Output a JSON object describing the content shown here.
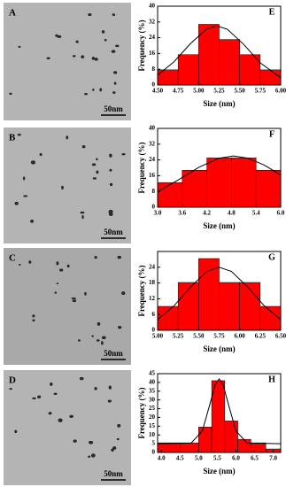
{
  "images": [
    {
      "label": "A",
      "scale_bar": "50nm"
    },
    {
      "label": "B",
      "scale_bar": "50nm"
    },
    {
      "label": "C",
      "scale_bar": "50nm"
    },
    {
      "label": "D",
      "scale_bar": "50nm"
    }
  ],
  "chart_data": [
    {
      "type": "histogram",
      "label": "E",
      "xlabel": "Size (nm)",
      "ylabel": "Frequency (%)",
      "color": "#ff0000",
      "bins": [
        4.5,
        4.75,
        5.0,
        5.25,
        5.5,
        5.75,
        6.0
      ],
      "values": [
        7.7,
        15.4,
        30.8,
        23.1,
        15.4,
        7.7
      ],
      "xlim": [
        4.5,
        6.0
      ],
      "ylim": [
        0,
        40
      ],
      "xticks": [
        {
          "value": 4.5,
          "label": "4.50"
        },
        4.75,
        {
          "value": 5.0,
          "label": "5.00"
        },
        5.25,
        {
          "value": 5.5,
          "label": "5.50"
        },
        5.75,
        {
          "value": 6.0,
          "label": "6.00"
        }
      ],
      "yticks": [
        0,
        8,
        16,
        24,
        32,
        40
      ],
      "fit": {
        "color": "#000000",
        "x": [
          4.5,
          4.7,
          4.9,
          5.1,
          5.22,
          5.35,
          5.55,
          5.75,
          6.0
        ],
        "values": [
          5.0,
          11.8,
          21.0,
          28.5,
          30,
          28.3,
          20.6,
          11.3,
          3.7
        ]
      }
    },
    {
      "type": "histogram",
      "label": "F",
      "xlabel": "Size (nm)",
      "ylabel": "Frequency (%)",
      "color": "#ff0000",
      "bins": [
        3.0,
        3.6,
        4.2,
        4.8,
        5.4,
        6.0
      ],
      "values": [
        12.5,
        18.75,
        25,
        25,
        18.75
      ],
      "xlim": [
        3.0,
        6.0
      ],
      "ylim": [
        0,
        40
      ],
      "xticks": [
        {
          "value": 3.0,
          "label": "3.0"
        },
        3.6,
        4.2,
        4.8,
        5.4,
        {
          "value": 6.0,
          "label": "6.0"
        }
      ],
      "yticks": [
        0,
        8,
        16,
        24,
        32,
        40
      ],
      "fit": {
        "color": "#000000",
        "x": [
          3.0,
          3.5,
          4.0,
          4.5,
          4.85,
          5.2,
          5.6,
          6.0
        ],
        "values": [
          7.9,
          13.8,
          20.2,
          24.9,
          26,
          24.9,
          21.4,
          16.4
        ]
      }
    },
    {
      "type": "histogram",
      "label": "G",
      "xlabel": "Size (nm)",
      "ylabel": "Frequency (%)",
      "color": "#ff0000",
      "bins": [
        5.0,
        5.25,
        5.5,
        5.75,
        6.0,
        6.25,
        6.5
      ],
      "values": [
        9.1,
        18.2,
        27.3,
        18.2,
        18.2,
        9.1
      ],
      "xlim": [
        5.0,
        6.5
      ],
      "ylim": [
        0,
        30
      ],
      "xticks": [
        {
          "value": 5.0,
          "label": "5.00"
        },
        5.25,
        {
          "value": 5.5,
          "label": "5.50"
        },
        5.75,
        {
          "value": 6.0,
          "label": "6.00"
        },
        6.25,
        {
          "value": 6.5,
          "label": "6.50"
        }
      ],
      "yticks": [
        0,
        6,
        12,
        18,
        24
      ],
      "fit": {
        "color": "#000000",
        "x": [
          5.0,
          5.2,
          5.4,
          5.6,
          5.75,
          5.9,
          6.1,
          6.3,
          6.5
        ],
        "values": [
          4.1,
          9.3,
          16.4,
          22.4,
          24,
          22.4,
          16.4,
          9.3,
          4.1
        ]
      }
    },
    {
      "type": "histogram",
      "label": "H",
      "xlabel": "Size (nm)",
      "ylabel": "Frequency (%)",
      "color": "#ff0000",
      "bins": [
        3.9,
        4.5,
        5.0,
        5.35,
        5.7,
        6.05,
        6.4,
        6.8,
        7.2
      ],
      "values": [
        5.5,
        5.5,
        14.5,
        41,
        18,
        7.5,
        5.5,
        2
      ],
      "xlim": [
        3.9,
        7.2
      ],
      "ylim": [
        0,
        45
      ],
      "xticks": [
        {
          "value": 4.0,
          "label": "4.0"
        },
        4.5,
        {
          "value": 5.0,
          "label": "5.0"
        },
        5.5,
        {
          "value": 6.0,
          "label": "6.0"
        },
        6.5,
        {
          "value": 7.0,
          "label": "7.0"
        }
      ],
      "yticks": [
        0,
        5,
        10,
        15,
        20,
        25,
        30,
        35,
        40,
        45
      ],
      "fit": {
        "color": "#000000",
        "x": [
          3.9,
          4.8,
          5.1,
          5.3,
          5.45,
          5.55,
          5.65,
          5.8,
          6.0,
          6.3,
          7.2
        ],
        "values": [
          5,
          5.4,
          12.3,
          27.4,
          39.2,
          42,
          39.2,
          27.4,
          12.3,
          5.4,
          5
        ]
      }
    }
  ]
}
